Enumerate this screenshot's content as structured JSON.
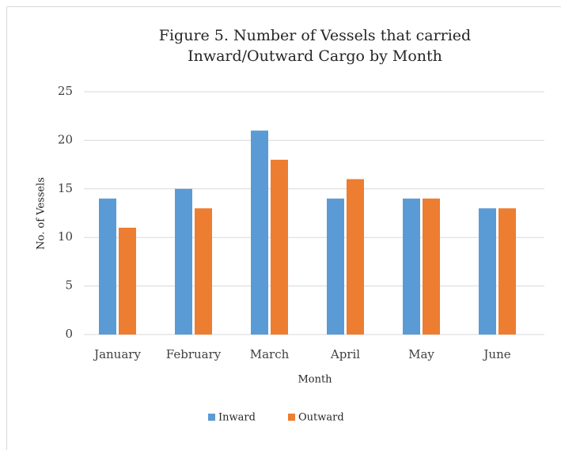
{
  "chart_data": {
    "type": "bar",
    "title": [
      "Figure 5. Number of Vessels that carried",
      "Inward/Outward Cargo by Month"
    ],
    "x_label": "Month",
    "y_label": "No. of Vessels",
    "categories": [
      "January",
      "February",
      "March",
      "April",
      "May",
      "June"
    ],
    "series": [
      {
        "name": "Inward",
        "color": "#5b9bd5",
        "values": [
          14,
          15,
          21,
          14,
          14,
          13
        ]
      },
      {
        "name": "Outward",
        "color": "#ed7d31",
        "values": [
          11,
          13,
          18,
          16,
          14,
          13
        ]
      }
    ],
    "ylim": [
      0,
      25
    ],
    "yticks": [
      0,
      5,
      10,
      15,
      20,
      25
    ],
    "grid": true,
    "legend": "bottom"
  }
}
